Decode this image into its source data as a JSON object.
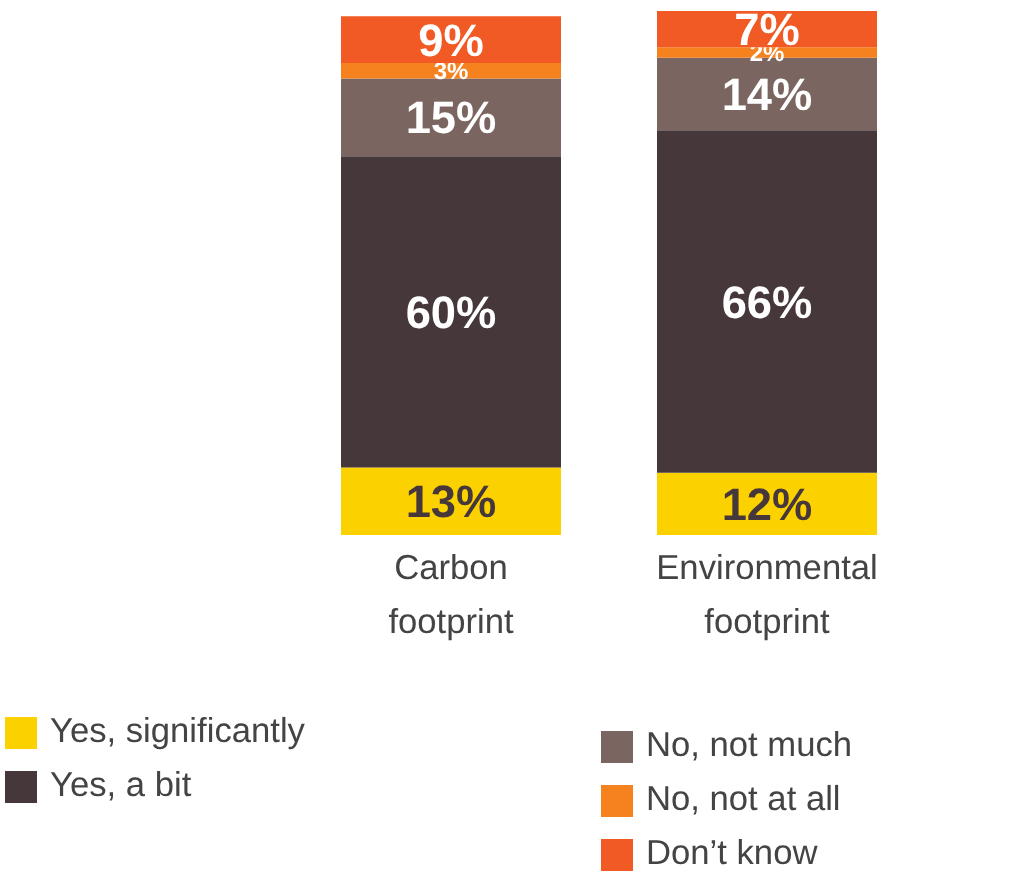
{
  "chart_data": {
    "type": "bar",
    "stacked": true,
    "categories": [
      "Carbon footprint",
      "Environmental footprint"
    ],
    "legend": "bottom",
    "grid": false,
    "series": [
      {
        "name": "Yes, significantly",
        "color": "#fcd100",
        "values": [
          13,
          12
        ],
        "value_labels": [
          "13%",
          "12%"
        ]
      },
      {
        "name": "Yes, a bit",
        "color": "#46383a",
        "values": [
          60,
          66
        ],
        "value_labels": [
          "60%",
          "66%"
        ]
      },
      {
        "name": "No, not much",
        "color": "#7a6560",
        "values": [
          15,
          14
        ],
        "value_labels": [
          "15%",
          "14%"
        ]
      },
      {
        "name": "No, not at all",
        "color": "#f5821f",
        "values": [
          3,
          2
        ],
        "value_labels": [
          "3%",
          "2%"
        ]
      },
      {
        "name": "Don’t know",
        "color": "#f15a24",
        "values": [
          9,
          7
        ],
        "value_labels": [
          "9%",
          "7%"
        ]
      }
    ]
  }
}
